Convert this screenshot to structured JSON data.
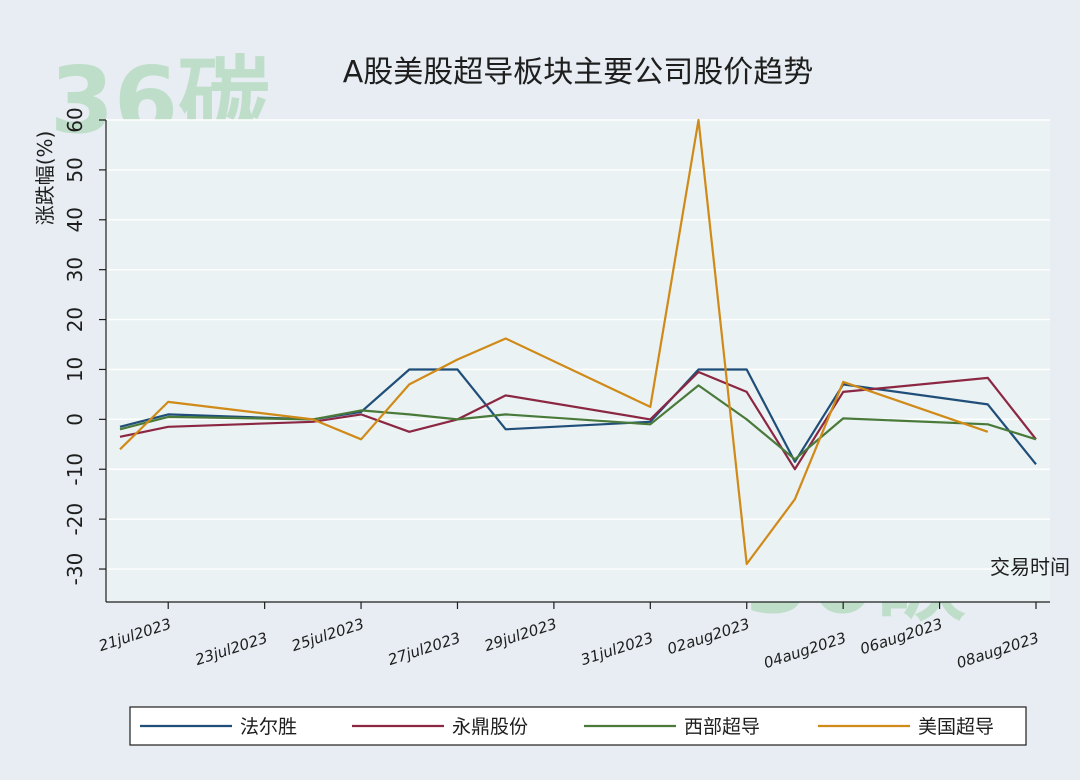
{
  "watermark": "36碳",
  "chart_data": {
    "type": "line",
    "title": "A股美股超导板块主要公司股价趋势",
    "ylabel": "涨跌幅(%)",
    "xlabel": "交易时间",
    "ylim": [
      -33,
      63
    ],
    "yticks": [
      -30,
      -20,
      -10,
      0,
      10,
      20,
      30,
      40,
      50,
      60
    ],
    "xlim": [
      "2023-07-20",
      "2023-08-08"
    ],
    "xticks": [
      {
        "date": "2023-07-21",
        "label": "21jul2023"
      },
      {
        "date": "2023-07-23",
        "label": "23jul2023"
      },
      {
        "date": "2023-07-25",
        "label": "25jul2023"
      },
      {
        "date": "2023-07-27",
        "label": "27jul2023"
      },
      {
        "date": "2023-07-29",
        "label": "29jul2023"
      },
      {
        "date": "2023-07-31",
        "label": "31jul2023"
      },
      {
        "date": "2023-08-02",
        "label": "02aug2023"
      },
      {
        "date": "2023-08-04",
        "label": "04aug2023"
      },
      {
        "date": "2023-08-06",
        "label": "06aug2023"
      },
      {
        "date": "2023-08-08",
        "label": "08aug2023"
      }
    ],
    "grid": true,
    "legend_position": "bottom",
    "series": [
      {
        "name": "法尔胜",
        "color": "#1f4e79",
        "x": [
          "2023-07-20",
          "2023-07-21",
          "2023-07-24",
          "2023-07-25",
          "2023-07-26",
          "2023-07-27",
          "2023-07-28",
          "2023-07-31",
          "2023-08-01",
          "2023-08-02",
          "2023-08-03",
          "2023-08-04",
          "2023-08-07",
          "2023-08-08"
        ],
        "y": [
          -1.5,
          1.0,
          0.0,
          1.5,
          10.0,
          10.0,
          -2.0,
          -0.5,
          10.0,
          10.0,
          -8.5,
          7.0,
          3.0,
          -9.0
        ]
      },
      {
        "name": "永鼎股份",
        "color": "#8b2742",
        "x": [
          "2023-07-20",
          "2023-07-21",
          "2023-07-24",
          "2023-07-25",
          "2023-07-26",
          "2023-07-27",
          "2023-07-28",
          "2023-07-31",
          "2023-08-01",
          "2023-08-02",
          "2023-08-03",
          "2023-08-04",
          "2023-08-07",
          "2023-08-08"
        ],
        "y": [
          -3.5,
          -1.5,
          -0.5,
          1.0,
          -2.5,
          0.0,
          4.8,
          0.0,
          9.5,
          5.5,
          -10.0,
          5.5,
          8.3,
          -4.0
        ]
      },
      {
        "name": "西部超导",
        "color": "#4a7a3a",
        "x": [
          "2023-07-20",
          "2023-07-21",
          "2023-07-24",
          "2023-07-25",
          "2023-07-26",
          "2023-07-27",
          "2023-07-28",
          "2023-07-31",
          "2023-08-01",
          "2023-08-02",
          "2023-08-03",
          "2023-08-04",
          "2023-08-07",
          "2023-08-08"
        ],
        "y": [
          -2.0,
          0.5,
          0.0,
          1.8,
          1.0,
          0.0,
          1.0,
          -1.0,
          6.8,
          0.0,
          -8.0,
          0.2,
          -1.0,
          -4.0
        ]
      },
      {
        "name": "美国超导",
        "color": "#d08a18",
        "x": [
          "2023-07-20",
          "2023-07-21",
          "2023-07-24",
          "2023-07-25",
          "2023-07-26",
          "2023-07-27",
          "2023-07-28",
          "2023-07-31",
          "2023-08-01",
          "2023-08-02",
          "2023-08-03",
          "2023-08-04",
          "2023-08-07"
        ],
        "y": [
          -6.0,
          3.5,
          0.0,
          -4.0,
          7.0,
          12.0,
          16.2,
          2.5,
          60.0,
          -29.0,
          -16.0,
          7.5,
          -2.5
        ]
      }
    ]
  }
}
